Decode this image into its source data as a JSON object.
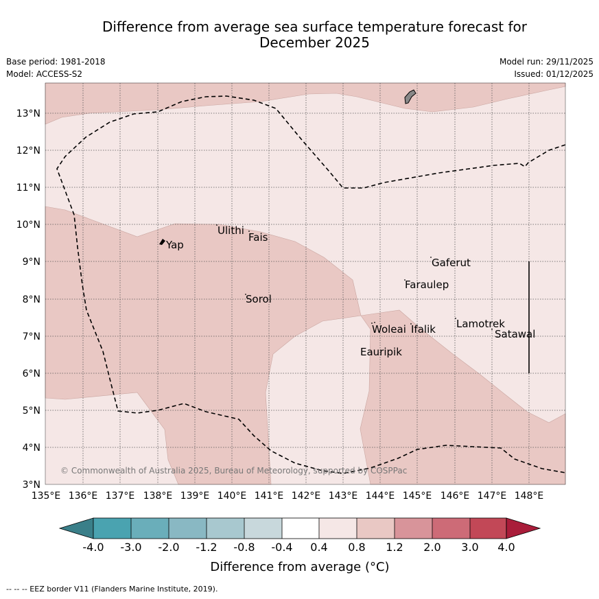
{
  "title_line1": "Difference from average sea surface temperature forecast for",
  "title_line2": "December 2025",
  "meta": {
    "base_period": "Base period: 1981-2018",
    "model": "Model: ACCESS-S2",
    "model_run": "Model run: 29/11/2025",
    "issued": "Issued: 01/12/2025"
  },
  "lat_labels": [
    "13°N",
    "12°N",
    "11°N",
    "10°N",
    "9°N",
    "8°N",
    "7°N",
    "6°N",
    "5°N",
    "4°N",
    "3°N"
  ],
  "lon_labels": [
    "135°E",
    "136°E",
    "137°E",
    "138°E",
    "139°E",
    "140°E",
    "141°E",
    "142°E",
    "143°E",
    "144°E",
    "145°E",
    "146°E",
    "147°E",
    "148°E"
  ],
  "places": {
    "yap": "Yap",
    "ulithi": "Ulithi",
    "fais": "Fais",
    "sorol": "Sorol",
    "gaferut": "Gaferut",
    "faraulep": "Faraulep",
    "lamotrek": "Lamotrek",
    "satawal": "Satawal",
    "woleai": "Woleai",
    "ifalik": "Ifalik",
    "eauripik": "Eauripik"
  },
  "copyright": "© Commonwealth of Australia 2025, Bureau of Meteorology, supported by COSPPac",
  "colorbar": {
    "ticks": [
      "-4.0",
      "-3.0",
      "-2.0",
      "-1.2",
      "-0.8",
      "-0.4",
      "0.4",
      "0.8",
      "1.2",
      "2.0",
      "3.0",
      "4.0"
    ],
    "colors": {
      "below_min": "#3a7f89",
      "c1": "#4aa3b0",
      "c2": "#6aaeba",
      "c3": "#89b8c3",
      "c4": "#a8c8cf",
      "c5": "#c8d8dc",
      "c6": "#ffffff",
      "c7": "#f5e7e6",
      "c8": "#e9c8c4",
      "c9": "#d8949a",
      "c10": "#cd6b77",
      "c11": "#c24857",
      "above_max": "#a91d3a"
    },
    "label": "Difference from average (°C)"
  },
  "footer": "--  --  -- EEZ border V11 (Flanders Marine Institute, 2019)."
}
